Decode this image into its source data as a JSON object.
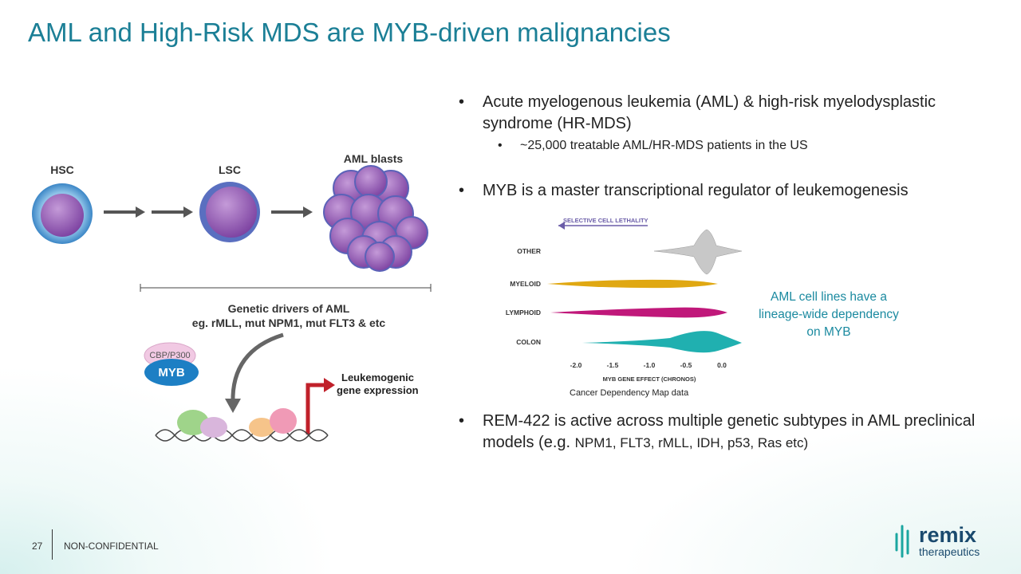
{
  "title": "AML and High-Risk MDS are MYB-driven malignancies",
  "diagram": {
    "stages": [
      "HSC",
      "LSC",
      "AML blasts"
    ],
    "drivers_title": "Genetic drivers of AML",
    "drivers_examples": "eg. rMLL, mut NPM1, mut FLT3 & etc",
    "cofactor": "CBP/P300",
    "factor": "MYB",
    "output": [
      "Leukemogenic",
      "gene expression"
    ]
  },
  "bullets": [
    {
      "text": "Acute myelogenous leukemia (AML) & high-risk myelodysplastic syndrome (HR-MDS)",
      "sub": "~25,000 treatable AML/HR-MDS patients in the US"
    },
    {
      "text": "MYB is a master transcriptional regulator of leukemogenesis"
    },
    {
      "text": "REM-422 is active across multiple genetic subtypes in AML preclinical models (e.g. ",
      "small": "NPM1, FLT3, rMLL, IDH, p53, Ras etc)"
    }
  ],
  "figure": {
    "arrow_label": "SELECTIVE CELL LETHALITY",
    "groups": [
      "OTHER",
      "MYELOID",
      "LYMPHOID",
      "COLON"
    ],
    "x_ticks": [
      "-2.0",
      "-1.5",
      "-1.0",
      "-0.5",
      "0.0"
    ],
    "x_label": "MYB GENE EFFECT (CHRONOS)",
    "caption": "Cancer Dependency Map data",
    "note": "AML cell lines have a lineage-wide dependency on MYB"
  },
  "footer": {
    "page": "27",
    "label": "NON-CONFIDENTIAL",
    "logo": [
      "remix",
      "therapeutics"
    ]
  }
}
